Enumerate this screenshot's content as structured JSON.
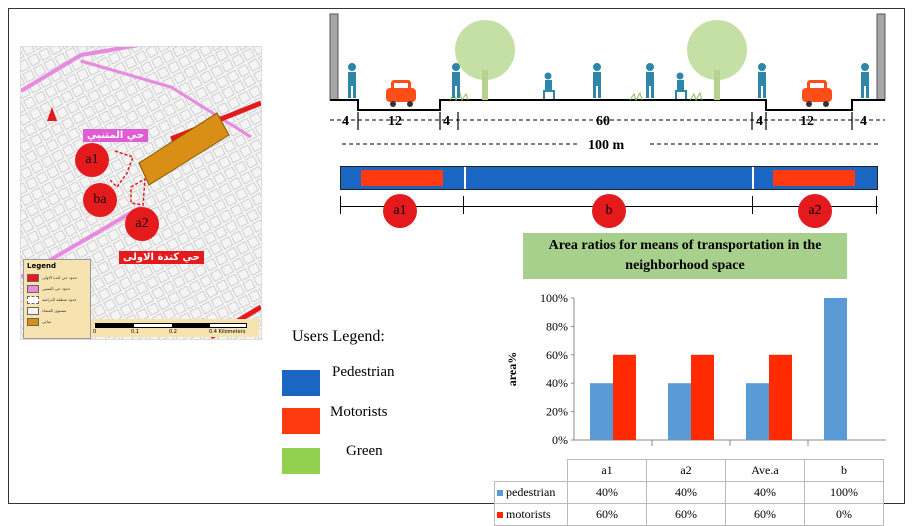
{
  "colors": {
    "pedestrian": "#1a66c2",
    "motorists": "#ff3a10",
    "green": "#92d050",
    "pin": "#e41a1c",
    "series_pedestrian": "#5b9bd5",
    "series_motorists": "#ff2a00"
  },
  "map": {
    "neighborhood_top": "حي المتنبي",
    "neighborhood_bottom": "حي كندة الاولى",
    "pins": [
      "a1",
      "ba",
      "a2"
    ],
    "legend_title": "Legend",
    "legend_items": [
      "حدود حي كندة الاولى",
      "حدود حي المتنبي",
      "حدود منطقة الدراسة",
      "مستوى الفضاء",
      "مباني"
    ],
    "scale_ticks": [
      "0",
      "0.1",
      "0.2",
      "0.4 Kilometers"
    ],
    "north_icon": "north-arrow-icon"
  },
  "section": {
    "dimensions": [
      "4",
      "12",
      "4",
      "60",
      "4",
      "12",
      "4"
    ],
    "total": "100 m",
    "icons": [
      "pedestrian-icon",
      "car-icon",
      "tree-icon",
      "bench-person-icon"
    ]
  },
  "zones": [
    "a1",
    "b",
    "a2"
  ],
  "users_legend": {
    "title": "Users Legend:",
    "items": [
      "Pedestrian",
      "Motorists",
      "Green"
    ]
  },
  "chart_data": {
    "type": "bar",
    "title": "Area ratios for means of transportation in the neighborhood space",
    "ylabel": "area%",
    "categories": [
      "a1",
      "a2",
      "Ave.a",
      "b"
    ],
    "series": [
      {
        "name": "pedestrian",
        "values": [
          40,
          40,
          40,
          100
        ],
        "labels": [
          "40%",
          "40%",
          "40%",
          "100%"
        ]
      },
      {
        "name": "motorists",
        "values": [
          60,
          60,
          60,
          0
        ],
        "labels": [
          "60%",
          "60%",
          "60%",
          "0%"
        ]
      }
    ],
    "yticks": [
      "0%",
      "20%",
      "40%",
      "60%",
      "80%",
      "100%"
    ],
    "ylim": [
      0,
      100
    ],
    "grid": false,
    "legend": "data-table"
  }
}
